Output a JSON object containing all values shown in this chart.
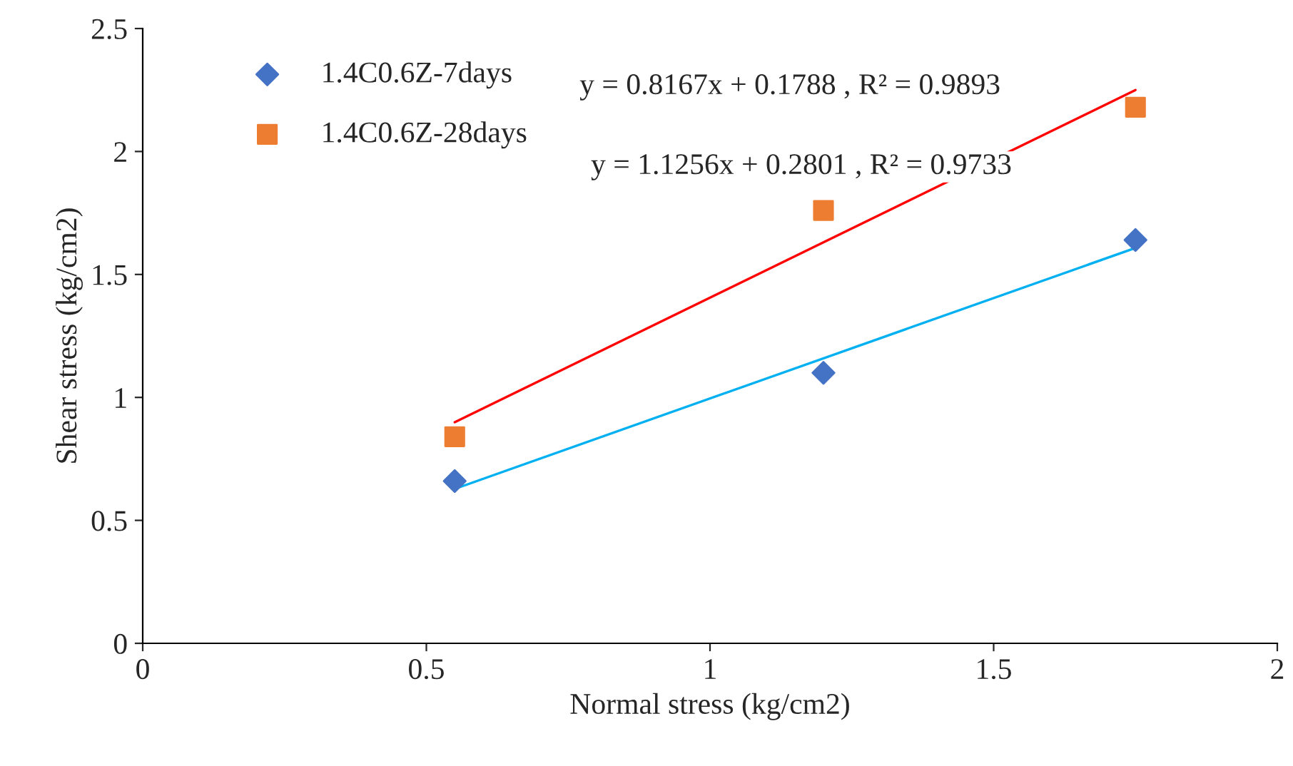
{
  "chart_data": {
    "type": "scatter",
    "xlabel": "Normal stress (kg/cm2)",
    "ylabel": "Shear stress (kg/cm2)",
    "xlim": [
      0,
      2
    ],
    "xticks": [
      0,
      0.5,
      1,
      1.5,
      2
    ],
    "ylim": [
      0,
      2.5
    ],
    "yticks": [
      0,
      0.5,
      1,
      1.5,
      2,
      2.5
    ],
    "grid": false,
    "legend": "top left",
    "series": [
      {
        "name": "1.4C0.6Z-7days",
        "marker": "diamond",
        "color": "#4472c4",
        "x": [
          0.55,
          1.2,
          1.75
        ],
        "values": [
          0.66,
          1.1,
          1.64
        ]
      },
      {
        "name": "1.4C0.6Z-28days",
        "marker": "square",
        "color": "#ed7d31",
        "x": [
          0.55,
          1.2,
          1.75
        ],
        "values": [
          0.84,
          1.76,
          2.18
        ]
      },
      {
        "type": "line",
        "marker": "none",
        "line_style": "solid",
        "color": "#00b0f0",
        "x": [
          0.55,
          1.75
        ],
        "values": [
          0.628,
          1.608
        ]
      },
      {
        "type": "line",
        "marker": "none",
        "line_style": "solid",
        "color": "#ff0000",
        "x": [
          0.55,
          1.75
        ],
        "values": [
          0.899,
          2.25
        ]
      }
    ],
    "annotations": [
      "y = 0.8167x + 0.1788 , R² = 0.9893",
      "y = 1.1256x + 0.2801 , R² = 0.9733"
    ]
  }
}
